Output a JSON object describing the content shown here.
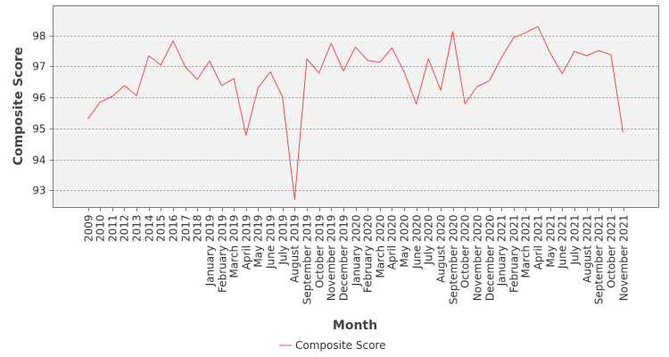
{
  "chart_data": {
    "type": "line",
    "xlabel": "Month",
    "ylabel": "Composite Score",
    "ylim": [
      92.45,
      98.95
    ],
    "yticks": [
      93,
      94,
      95,
      96,
      97,
      98
    ],
    "grid": true,
    "legend_position": "bottom-center",
    "categories": [
      "2009",
      "2010",
      "2011",
      "2012",
      "2013",
      "2014",
      "2015",
      "2016",
      "2017",
      "2018",
      "January 2019",
      "February 2019",
      "March 2019",
      "April 2019",
      "May 2019",
      "June 2019",
      "July 2019",
      "August 2019",
      "September 2019",
      "October 2019",
      "November 2019",
      "December 2019",
      "January 2020",
      "February 2020",
      "March 2020",
      "April 2020",
      "May 2020",
      "June 2020",
      "July 2020",
      "August 2020",
      "September 2020",
      "October 2020",
      "November 2020",
      "December 2020",
      "January 2021",
      "February 2021",
      "March 2021",
      "April 2021",
      "May 2021",
      "June 2021",
      "July 2021",
      "August 2021",
      "September 2021",
      "October 2021",
      "November 2021"
    ],
    "series": [
      {
        "name": "Composite Score",
        "color": "#f04848",
        "values": [
          95.3,
          95.84,
          96.03,
          96.38,
          96.06,
          97.34,
          97.04,
          97.82,
          96.99,
          96.58,
          97.17,
          96.38,
          96.61,
          94.78,
          96.31,
          96.82,
          96.02,
          92.71,
          97.24,
          96.78,
          97.74,
          96.85,
          97.62,
          97.19,
          97.13,
          97.59,
          96.83,
          95.78,
          97.24,
          96.23,
          98.12,
          95.79,
          96.35,
          96.53,
          97.27,
          97.92,
          98.09,
          98.28,
          97.43,
          96.76,
          97.48,
          97.34,
          97.51,
          97.37,
          94.88
        ]
      }
    ]
  },
  "colors": {
    "plot_background": "#f2f2f2",
    "grid": "#7a7a7a",
    "axis": "#7a7a7a"
  }
}
